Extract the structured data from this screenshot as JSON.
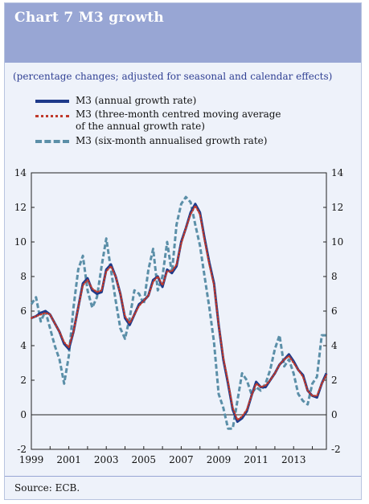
{
  "title": "Chart 7 M3 growth",
  "subtitle": "(percentage changes; adjusted for seasonal and calendar effects)",
  "source": "Source: ECB.",
  "legend": [
    {
      "label": "M3 (annual growth rate)",
      "style": "solid",
      "color": "#1e3a8a"
    },
    {
      "label": "M3 (three-month centred moving average",
      "label2": "of the annual growth rate)",
      "style": "dotted",
      "color": "#c0392b"
    },
    {
      "label": "M3 (six-month annualised growth rate)",
      "style": "dashed",
      "color": "#5b8fa8"
    }
  ],
  "chart_data": {
    "type": "line",
    "title": "Chart 7 M3 growth",
    "subtitle": "(percentage changes; adjusted for seasonal and calendar effects)",
    "ylim": [
      -2,
      14
    ],
    "yticks": [
      -2,
      0,
      2,
      4,
      6,
      8,
      10,
      12,
      14
    ],
    "xlim": [
      1999.0,
      2014.75
    ],
    "xticks": [
      1999,
      2001,
      2003,
      2005,
      2007,
      2009,
      2011,
      2013
    ],
    "grid": false,
    "dual_y_axis": true,
    "series": [
      {
        "name": "M3 (annual growth rate)",
        "style": "solid",
        "color": "#1e3a8a",
        "x": [
          1999.0,
          1999.25,
          1999.5,
          1999.75,
          2000.0,
          2000.25,
          2000.5,
          2000.75,
          2001.0,
          2001.25,
          2001.5,
          2001.75,
          2002.0,
          2002.25,
          2002.5,
          2002.75,
          2003.0,
          2003.25,
          2003.5,
          2003.75,
          2004.0,
          2004.25,
          2004.5,
          2004.75,
          2005.0,
          2005.25,
          2005.5,
          2005.75,
          2006.0,
          2006.25,
          2006.5,
          2006.75,
          2007.0,
          2007.25,
          2007.5,
          2007.75,
          2008.0,
          2008.25,
          2008.5,
          2008.75,
          2009.0,
          2009.25,
          2009.5,
          2009.75,
          2010.0,
          2010.25,
          2010.5,
          2010.75,
          2011.0,
          2011.25,
          2011.5,
          2011.75,
          2012.0,
          2012.25,
          2012.5,
          2012.75,
          2013.0,
          2013.25,
          2013.5,
          2013.75,
          2014.0,
          2014.25,
          2014.5,
          2014.75
        ],
        "y": [
          5.6,
          5.7,
          5.9,
          6.0,
          5.8,
          5.3,
          4.8,
          4.1,
          3.8,
          4.8,
          6.2,
          7.6,
          7.9,
          7.2,
          7.0,
          7.1,
          8.4,
          8.7,
          8.0,
          7.0,
          5.6,
          5.2,
          5.8,
          6.4,
          6.6,
          6.9,
          7.8,
          8.0,
          7.4,
          8.4,
          8.2,
          8.6,
          10.0,
          10.8,
          11.7,
          12.2,
          11.7,
          10.2,
          8.8,
          7.6,
          5.2,
          3.2,
          1.8,
          0.3,
          -0.4,
          -0.2,
          0.2,
          1.1,
          1.9,
          1.6,
          1.6,
          2.0,
          2.4,
          2.9,
          3.2,
          3.5,
          3.1,
          2.6,
          2.3,
          1.4,
          1.1,
          1.0,
          1.8,
          2.4
        ]
      },
      {
        "name": "M3 (three-month centred moving average of the annual growth rate)",
        "style": "dotted",
        "color": "#c0392b",
        "x": [
          1999.0,
          1999.25,
          1999.5,
          1999.75,
          2000.0,
          2000.25,
          2000.5,
          2000.75,
          2001.0,
          2001.25,
          2001.5,
          2001.75,
          2002.0,
          2002.25,
          2002.5,
          2002.75,
          2003.0,
          2003.25,
          2003.5,
          2003.75,
          2004.0,
          2004.25,
          2004.5,
          2004.75,
          2005.0,
          2005.25,
          2005.5,
          2005.75,
          2006.0,
          2006.25,
          2006.5,
          2006.75,
          2007.0,
          2007.25,
          2007.5,
          2007.75,
          2008.0,
          2008.25,
          2008.5,
          2008.75,
          2009.0,
          2009.25,
          2009.5,
          2009.75,
          2010.0,
          2010.25,
          2010.5,
          2010.75,
          2011.0,
          2011.25,
          2011.5,
          2011.75,
          2012.0,
          2012.25,
          2012.5,
          2012.75,
          2013.0,
          2013.25,
          2013.5,
          2013.75,
          2014.0,
          2014.25,
          2014.5,
          2014.75
        ],
        "y": [
          5.6,
          5.7,
          5.8,
          5.9,
          5.8,
          5.3,
          4.8,
          4.2,
          3.9,
          4.8,
          6.2,
          7.5,
          7.8,
          7.3,
          7.1,
          7.2,
          8.3,
          8.6,
          8.0,
          7.0,
          5.7,
          5.3,
          5.8,
          6.3,
          6.6,
          6.9,
          7.7,
          8.0,
          7.5,
          8.3,
          8.3,
          8.7,
          9.9,
          10.8,
          11.6,
          12.1,
          11.6,
          10.1,
          8.7,
          7.5,
          5.2,
          3.3,
          1.9,
          0.4,
          -0.3,
          -0.1,
          0.3,
          1.1,
          1.8,
          1.6,
          1.7,
          2.0,
          2.4,
          2.9,
          3.2,
          3.4,
          3.0,
          2.6,
          2.2,
          1.4,
          1.1,
          1.1,
          1.8,
          2.3
        ]
      },
      {
        "name": "M3 (six-month annualised growth rate)",
        "style": "dashed",
        "color": "#5b8fa8",
        "x": [
          1999.0,
          1999.25,
          1999.5,
          1999.75,
          2000.0,
          2000.25,
          2000.5,
          2000.75,
          2001.0,
          2001.25,
          2001.5,
          2001.75,
          2002.0,
          2002.25,
          2002.5,
          2002.75,
          2003.0,
          2003.25,
          2003.5,
          2003.75,
          2004.0,
          2004.25,
          2004.5,
          2004.75,
          2005.0,
          2005.25,
          2005.5,
          2005.75,
          2006.0,
          2006.25,
          2006.5,
          2006.75,
          2007.0,
          2007.25,
          2007.5,
          2007.75,
          2008.0,
          2008.25,
          2008.5,
          2008.75,
          2009.0,
          2009.25,
          2009.5,
          2009.75,
          2010.0,
          2010.25,
          2010.5,
          2010.75,
          2011.0,
          2011.25,
          2011.5,
          2011.75,
          2012.0,
          2012.25,
          2012.5,
          2012.75,
          2013.0,
          2013.25,
          2013.5,
          2013.75,
          2014.0,
          2014.25,
          2014.5,
          2014.75
        ],
        "y": [
          6.4,
          6.8,
          5.4,
          6.0,
          5.0,
          4.0,
          3.2,
          1.8,
          3.4,
          6.2,
          8.4,
          9.2,
          7.2,
          6.2,
          6.8,
          8.6,
          10.2,
          8.4,
          6.6,
          5.0,
          4.4,
          5.6,
          7.2,
          7.0,
          6.4,
          8.4,
          9.6,
          7.2,
          8.0,
          10.0,
          8.2,
          11.0,
          12.2,
          12.6,
          12.3,
          11.0,
          9.8,
          8.0,
          6.2,
          4.2,
          1.2,
          0.4,
          -0.8,
          -0.8,
          0.8,
          2.4,
          2.0,
          1.2,
          1.6,
          1.4,
          1.8,
          2.6,
          3.8,
          4.6,
          2.8,
          3.2,
          2.4,
          1.2,
          0.8,
          0.6,
          1.8,
          2.2,
          4.6,
          4.6
        ]
      }
    ]
  }
}
